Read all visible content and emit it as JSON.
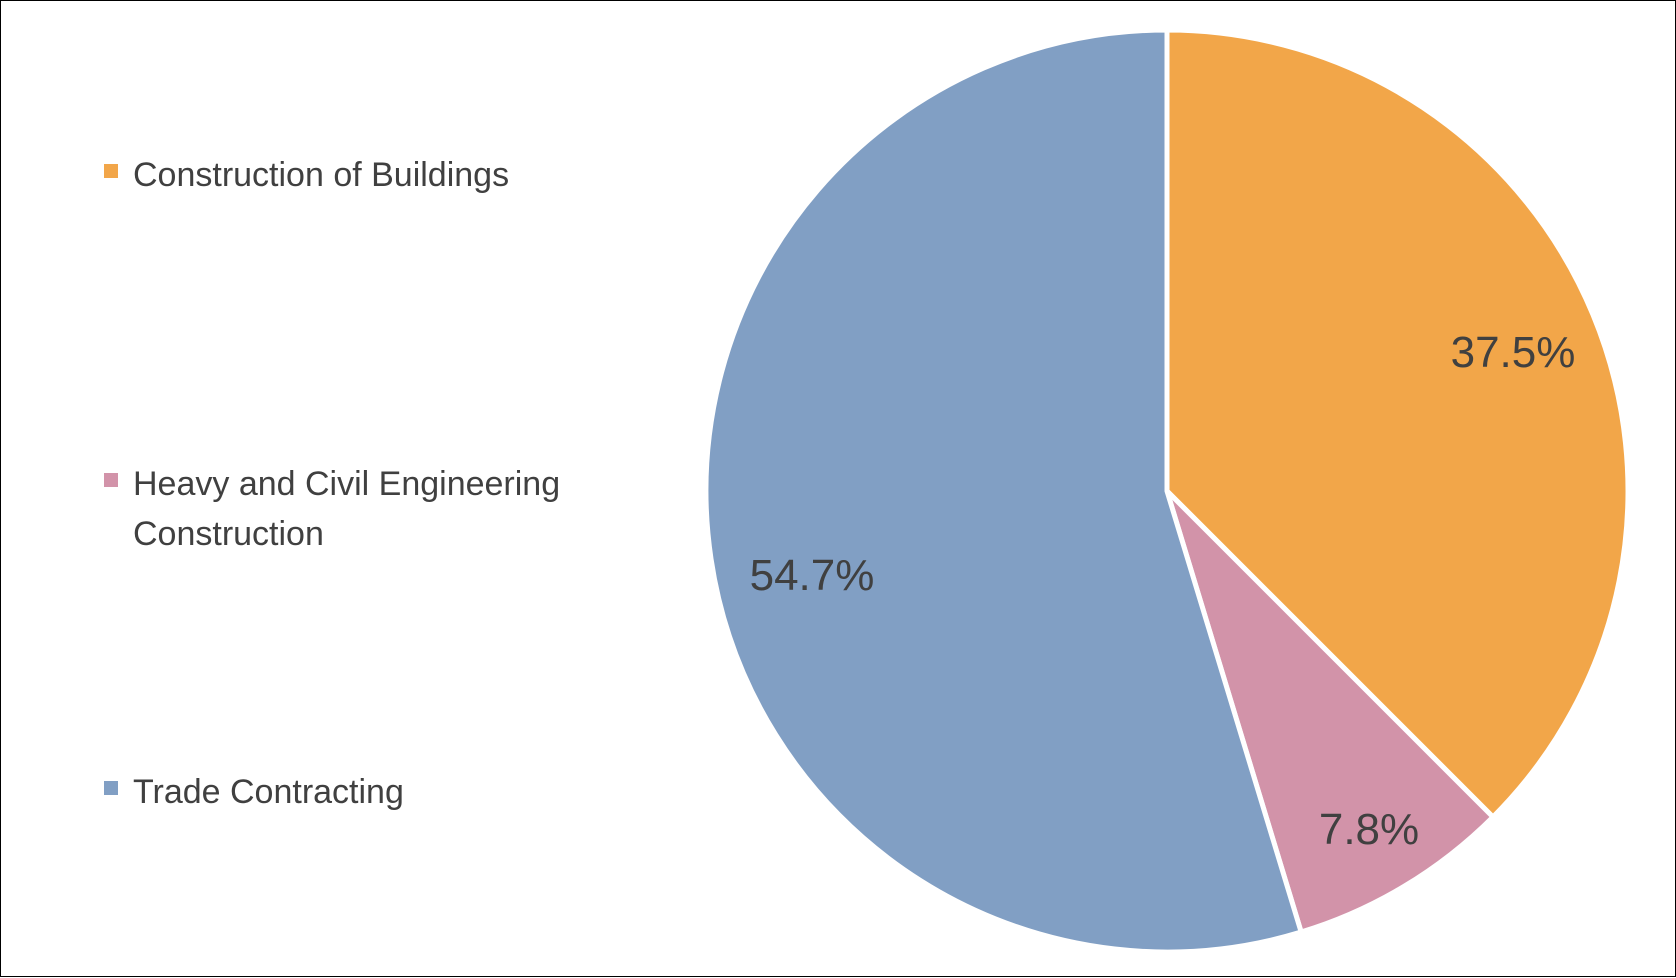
{
  "chart_data": {
    "type": "pie",
    "title": "",
    "slices": [
      {
        "name": "Construction of Buildings",
        "value": 37.5,
        "label": "37.5%",
        "color": "#F2A649"
      },
      {
        "name": "Heavy and Civil Engineering Construction",
        "value": 7.8,
        "label": "7.8%",
        "color": "#D293A9"
      },
      {
        "name": "Trade Contracting",
        "value": 54.7,
        "label": "54.7%",
        "color": "#819FC4"
      }
    ],
    "legend_position": "left",
    "start_angle": "12 o'clock",
    "direction": "clockwise"
  },
  "colors": {
    "slice_border": "#FFFFFF",
    "text": "#404040",
    "frame": "#000000"
  }
}
